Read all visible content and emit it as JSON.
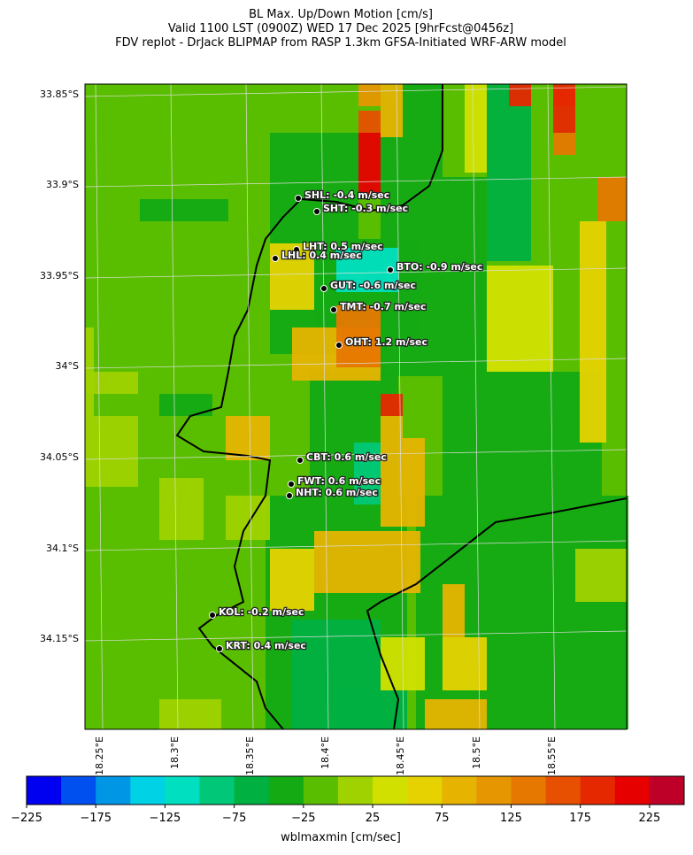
{
  "title": [
    "BL Max. Up/Down Motion [cm/s]",
    "Valid 1100 LST (0900Z) WED 17 Dec 2025 [9hrFcst@0456z]",
    "FDV replot - DrJack BLIPMAP from RASP 1.3km GFSA-Initiated WRF-ARW model"
  ],
  "map": {
    "lat_labels": [
      "33.85°S",
      "33.9°S",
      "33.95°S",
      "34°S",
      "34.05°S",
      "34.1°S",
      "34.15°S"
    ],
    "lon_labels": [
      "18.25°E",
      "18.3°E",
      "18.35°E",
      "18.4°E",
      "18.45°E",
      "18.5°E",
      "18.55°E"
    ],
    "stations": [
      {
        "label": "SHL: -0.4 m/sec"
      },
      {
        "label": "SHT: -0.3 m/sec"
      },
      {
        "label": "LHT: 0.5 m/sec"
      },
      {
        "label": "LHL: 0.4 m/sec"
      },
      {
        "label": "BTO: -0.9 m/sec"
      },
      {
        "label": "GUT: -0.6 m/sec"
      },
      {
        "label": "TMT: -0.7 m/sec"
      },
      {
        "label": "OHT: 1.2 m/sec"
      },
      {
        "label": "CBT: 0.6 m/sec"
      },
      {
        "label": "FWT: 0.6 m/sec"
      },
      {
        "label": "NHT: 0.6 m/sec"
      },
      {
        "label": "KOL: -0.2 m/sec"
      },
      {
        "label": "KRT: 0.4 m/sec"
      }
    ]
  },
  "colorbar": {
    "label": "wblmaxmin [cm/sec]",
    "lim": [
      -225,
      250
    ],
    "ticks": [
      {
        "value": -225,
        "label": "−225"
      },
      {
        "value": -175,
        "label": "−175"
      },
      {
        "value": -125,
        "label": "−125"
      },
      {
        "value": -75,
        "label": "−75"
      },
      {
        "value": -25,
        "label": "−25"
      },
      25,
      75,
      125,
      175,
      225
    ],
    "colors": [
      "#0000f0",
      "#0050f0",
      "#0096e6",
      "#00d2e6",
      "#00e0c0",
      "#00c878",
      "#00b040",
      "#14aa14",
      "#5abe00",
      "#a0d200",
      "#d2e000",
      "#e6d200",
      "#e6b400",
      "#e69600",
      "#e67800",
      "#e65000",
      "#e62800",
      "#e60000",
      "#be0028"
    ]
  }
}
